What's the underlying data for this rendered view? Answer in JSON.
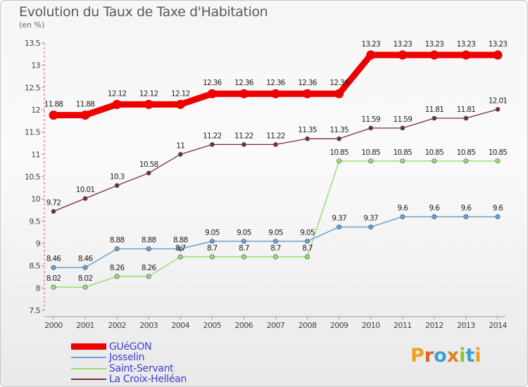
{
  "header": {
    "title": "Evolution du Taux de Taxe d'Habitation",
    "subtitle": "(en %)"
  },
  "chart_data": {
    "type": "line",
    "title": "Evolution du Taux de Taxe d'Habitation",
    "ylabel": "(en %)",
    "xlabel": "",
    "x": [
      "2000",
      "2001",
      "2002",
      "2003",
      "2004",
      "2005",
      "2006",
      "2007",
      "2008",
      "2009",
      "2010",
      "2011",
      "2012",
      "2013",
      "2014"
    ],
    "ylim": [
      7.5,
      13.5
    ],
    "yticks": [
      "7.5",
      "8",
      "8.5",
      "9",
      "9.5",
      "10",
      "10.5",
      "11",
      "11.5",
      "12",
      "12.5",
      "13",
      "13.5"
    ],
    "grid": false,
    "legend_position": "bottom-left",
    "series": [
      {
        "name": "GUéGON",
        "color": "#ee0000",
        "values": [
          11.88,
          11.88,
          12.12,
          12.12,
          12.12,
          12.36,
          12.36,
          12.36,
          12.36,
          12.36,
          13.23,
          13.23,
          13.23,
          13.23,
          13.23
        ],
        "labels": [
          "11.88",
          "11.88",
          "12.12",
          "12.12",
          "12.12",
          "12.36",
          "12.36",
          "12.36",
          "12.36",
          "12.36",
          "13.23",
          "13.23",
          "13.23",
          "13.23",
          "13.23"
        ]
      },
      {
        "name": "Josselin",
        "color": "#6aa2cf",
        "values": [
          8.46,
          8.46,
          8.88,
          8.88,
          8.88,
          9.05,
          9.05,
          9.05,
          9.05,
          9.37,
          9.37,
          9.6,
          9.6,
          9.6,
          9.6
        ],
        "labels": [
          "8.46",
          "8.46",
          "8.88",
          "8.88",
          "8.88",
          "9.05",
          "9.05",
          "9.05",
          "9.05",
          "9.37",
          "9.37",
          "9.6",
          "9.6",
          "9.6",
          "9.6"
        ]
      },
      {
        "name": "Saint-Servant",
        "color": "#9edc6e",
        "values": [
          8.02,
          8.02,
          8.26,
          8.26,
          8.7,
          8.7,
          8.7,
          8.7,
          8.7,
          10.85,
          10.85,
          10.85,
          10.85,
          10.85,
          10.85
        ],
        "labels": [
          "8.02",
          "8.02",
          "8.26",
          "8.26",
          "8.7",
          "8.7",
          "8.7",
          "8.7",
          "8.7",
          "10.85",
          "10.85",
          "10.85",
          "10.85",
          "10.85",
          "10.85"
        ]
      },
      {
        "name": "La Croix-Helléan",
        "color": "#7a2e33",
        "values": [
          9.72,
          10.01,
          10.3,
          10.58,
          11,
          11.22,
          11.22,
          11.22,
          11.35,
          11.35,
          11.59,
          11.59,
          11.81,
          11.81,
          12.01
        ],
        "labels": [
          "9.72",
          "10.01",
          "10.3",
          "10.58",
          "11",
          "11.22",
          "11.22",
          "11.22",
          "11.35",
          "11.35",
          "11.59",
          "11.59",
          "11.81",
          "11.81",
          "12.01"
        ]
      }
    ]
  },
  "logo": {
    "text": "Proxiti",
    "letters": [
      "P",
      "r",
      "o",
      "x",
      "i",
      "t",
      "i"
    ],
    "colors": [
      "#f0a020",
      "#e06020",
      "#3aa0d8",
      "#e08020",
      "#90c030",
      "#3aa0d8",
      "#f0a020"
    ]
  }
}
